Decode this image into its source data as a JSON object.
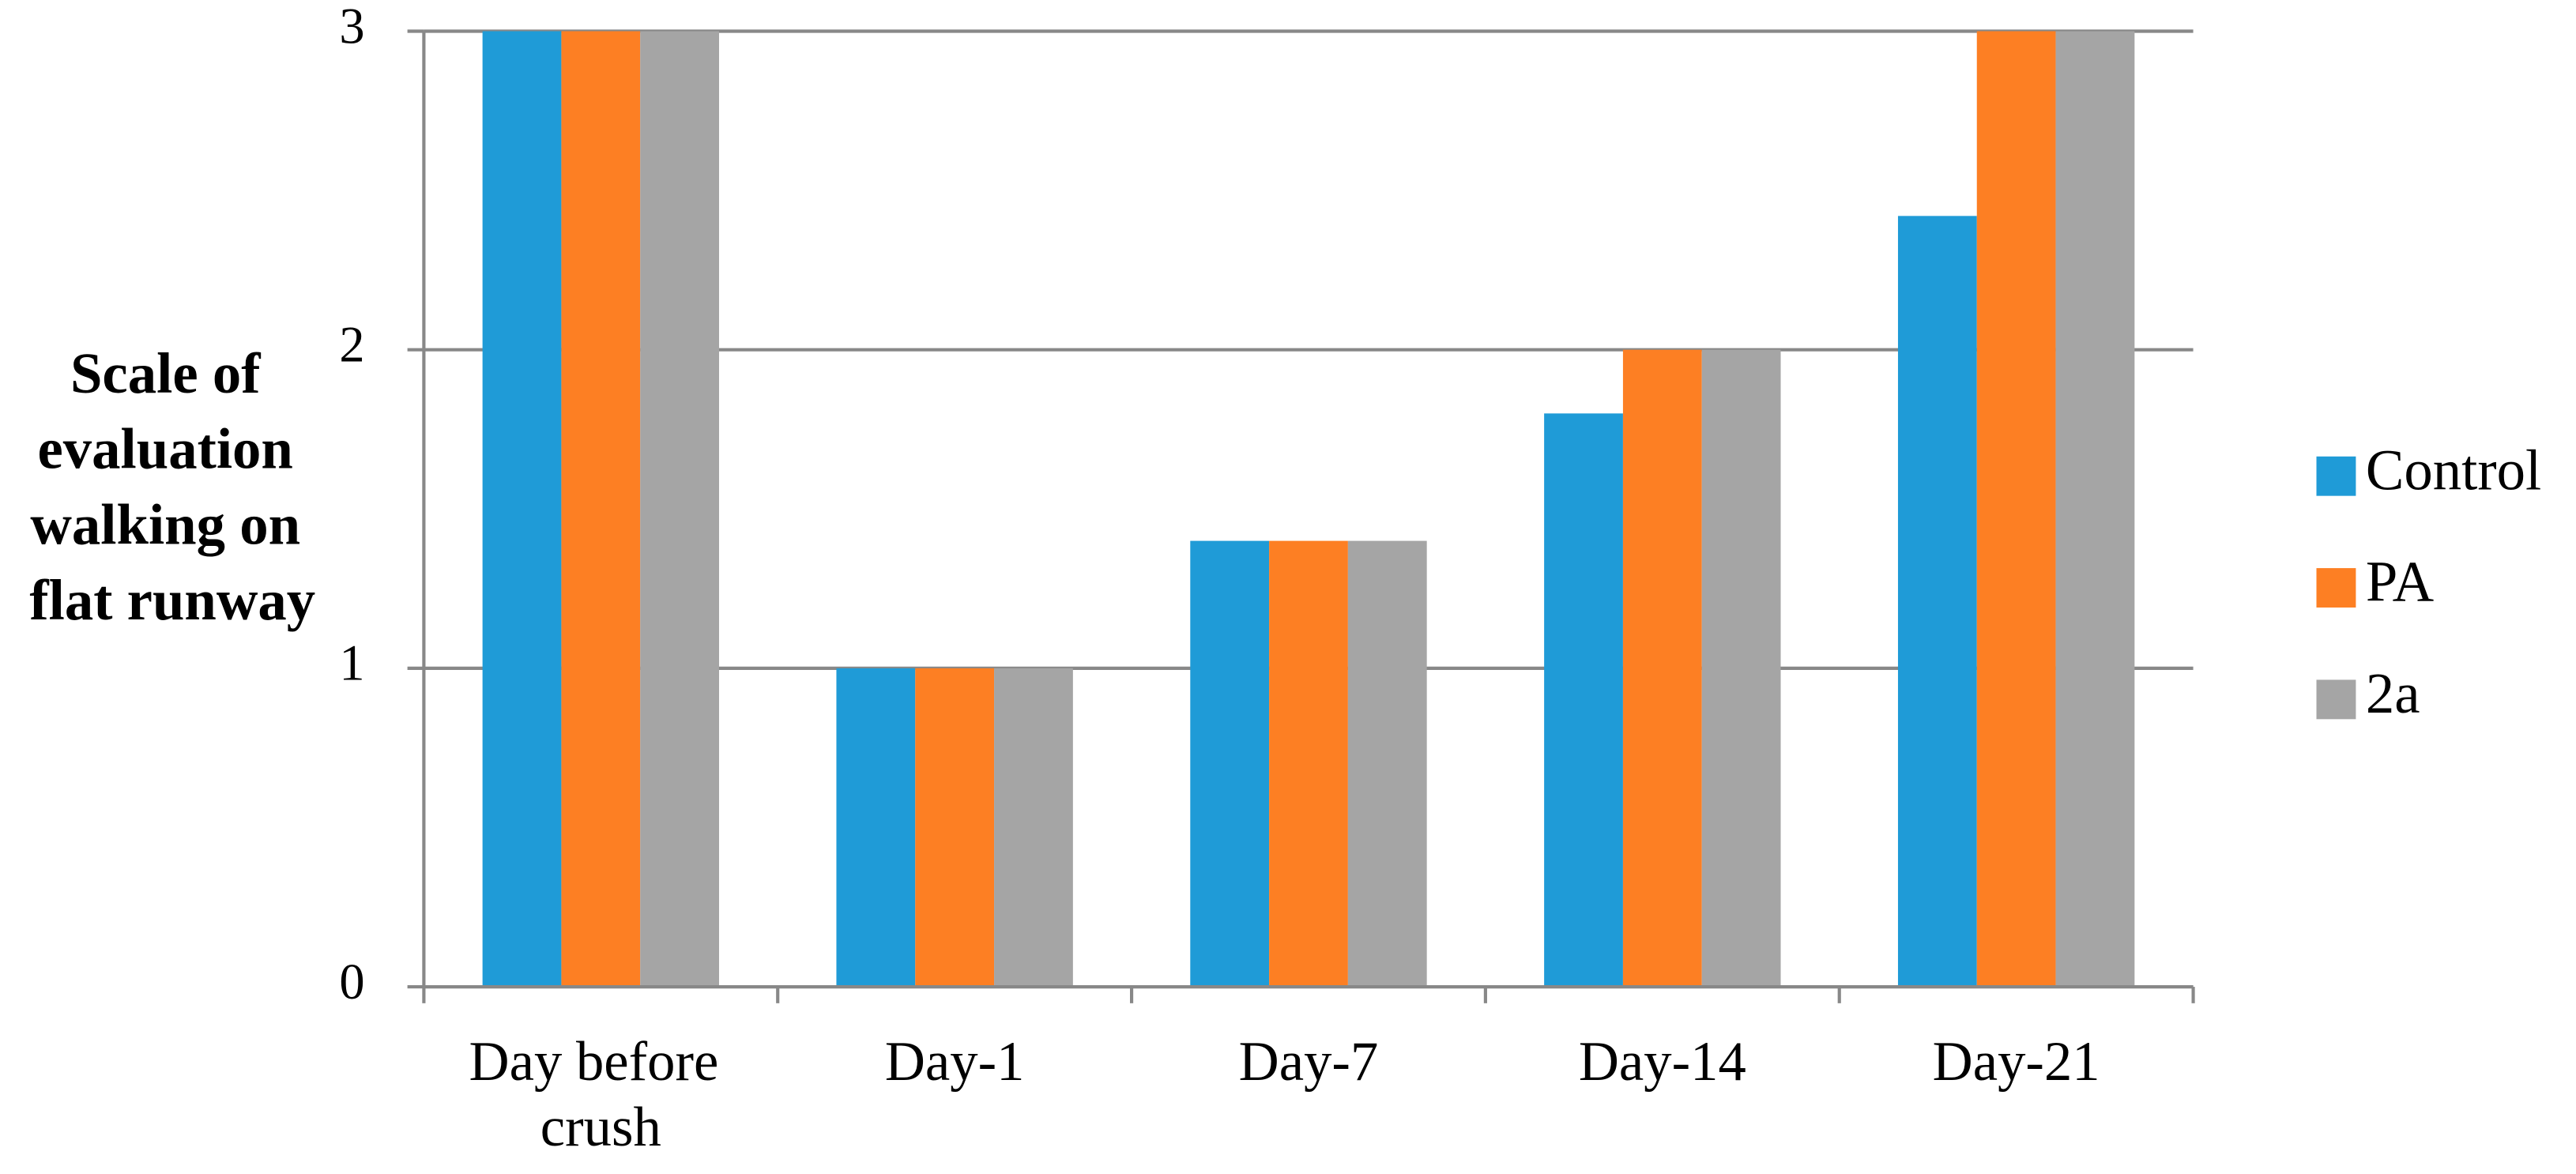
{
  "chart_data": {
    "type": "bar",
    "ylabel": "Scale of evaluation walking on flat runway",
    "categories": [
      "Day before crush",
      "Day-1",
      "Day-7",
      "Day-14",
      "Day-21"
    ],
    "series": [
      {
        "name": "Control",
        "color": "#1f9bd7",
        "values": [
          3,
          1,
          1.4,
          1.8,
          2.42
        ]
      },
      {
        "name": "PA",
        "color": "#fd7f23",
        "values": [
          3,
          1,
          1.4,
          2,
          3
        ]
      },
      {
        "name": "2a",
        "color": "#a5a5a5",
        "values": [
          3,
          1,
          1.4,
          2,
          3
        ]
      }
    ],
    "ylim": [
      0,
      3
    ],
    "yticks": [
      0,
      1,
      2,
      3
    ],
    "grid": true,
    "legend": "right"
  }
}
